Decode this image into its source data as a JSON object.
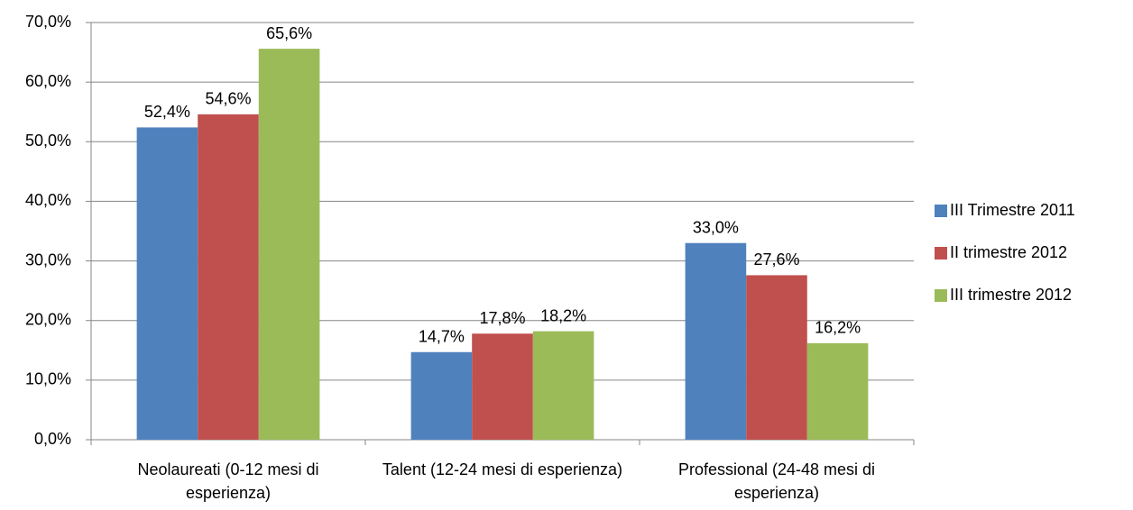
{
  "chart_data": {
    "type": "bar",
    "categories": [
      "Neolaureati (0-12 mesi di esperienza)",
      "Talent (12-24 mesi di esperienza)",
      "Professional (24-48 mesi di esperienza)"
    ],
    "series": [
      {
        "name": "III Trimestre 2011",
        "color": "#4f81bd",
        "values": [
          52.4,
          14.7,
          33.0
        ],
        "value_labels": [
          "52,4%",
          "14,7%",
          "33,0%"
        ]
      },
      {
        "name": "II trimestre 2012",
        "color": "#c0504d",
        "values": [
          54.6,
          17.8,
          27.6
        ],
        "value_labels": [
          "54,6%",
          "17,8%",
          "27,6%"
        ]
      },
      {
        "name": "III trimestre 2012",
        "color": "#9bbb59",
        "values": [
          65.6,
          18.2,
          16.2
        ],
        "value_labels": [
          "65,6%",
          "18,2%",
          "16,2%"
        ]
      }
    ],
    "ylim": [
      0,
      70
    ],
    "yticks": [
      {
        "value": 0,
        "label": "0,0%"
      },
      {
        "value": 10,
        "label": "10,0%"
      },
      {
        "value": 20,
        "label": "20,0%"
      },
      {
        "value": 30,
        "label": "30,0%"
      },
      {
        "value": 40,
        "label": "40,0%"
      },
      {
        "value": 50,
        "label": "50,0%"
      },
      {
        "value": 60,
        "label": "60,0%"
      },
      {
        "value": 70,
        "label": "70,0%"
      }
    ],
    "grid": true,
    "legend": "right"
  }
}
